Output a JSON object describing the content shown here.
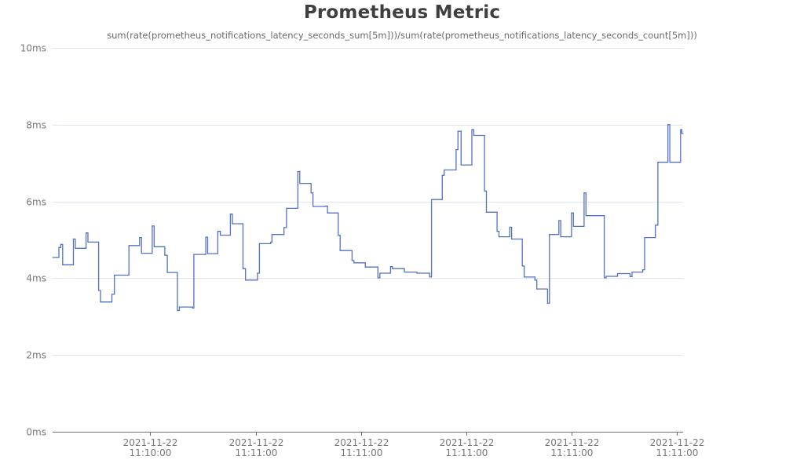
{
  "header": {
    "title": "Prometheus Metric",
    "subtitle": "sum(rate(prometheus_notifications_latency_seconds_sum[5m]))/sum(rate(prometheus_notifications_latency_seconds_count[5m]))"
  },
  "colors": {
    "series": "#5470c6",
    "grid": "#e0e6f1",
    "axis": "#6e7079",
    "tick_text": "#777777"
  },
  "chart_data": {
    "type": "line",
    "title": "Prometheus Metric",
    "subtitle": "sum(rate(prometheus_notifications_latency_seconds_sum[5m]))/sum(rate(prometheus_notifications_latency_seconds_count[5m]))",
    "xlabel": "",
    "ylabel": "",
    "ylim": [
      0,
      10
    ],
    "y_unit": "ms",
    "y_ticks": [
      {
        "value": 0,
        "label": "0ms"
      },
      {
        "value": 2,
        "label": "2ms"
      },
      {
        "value": 4,
        "label": "4ms"
      },
      {
        "value": 6,
        "label": "6ms"
      },
      {
        "value": 8,
        "label": "8ms"
      },
      {
        "value": 10,
        "label": "10ms"
      }
    ],
    "x_range": [
      0,
      100
    ],
    "x_ticks": [
      {
        "pos": 15.5,
        "date": "2021-11-22",
        "time": "11:10:00"
      },
      {
        "pos": 32.2,
        "date": "2021-11-22",
        "time": "11:11:00"
      },
      {
        "pos": 48.9,
        "date": "2021-11-22",
        "time": "11:11:00"
      },
      {
        "pos": 65.6,
        "date": "2021-11-22",
        "time": "11:11:00"
      },
      {
        "pos": 82.3,
        "date": "2021-11-22",
        "time": "11:11:00"
      },
      {
        "pos": 99.0,
        "date": "2021-11-22",
        "time": "11:11:00"
      }
    ],
    "grid": true,
    "legend": "none",
    "step": "end",
    "series": [
      {
        "points": [
          [
            0.0,
            4.54
          ],
          [
            0.5,
            4.54
          ],
          [
            0.8,
            4.54
          ],
          [
            1.0,
            4.8
          ],
          [
            1.3,
            4.88
          ],
          [
            1.6,
            4.35
          ],
          [
            2.0,
            4.35
          ],
          [
            3.1,
            4.35
          ],
          [
            3.3,
            5.02
          ],
          [
            3.6,
            4.78
          ],
          [
            5.2,
            4.78
          ],
          [
            5.3,
            5.18
          ],
          [
            5.6,
            4.94
          ],
          [
            7.1,
            4.94
          ],
          [
            7.3,
            3.68
          ],
          [
            7.6,
            3.38
          ],
          [
            9.2,
            3.38
          ],
          [
            9.4,
            3.58
          ],
          [
            9.8,
            4.08
          ],
          [
            11.9,
            4.08
          ],
          [
            12.1,
            4.85
          ],
          [
            13.6,
            4.85
          ],
          [
            13.8,
            5.06
          ],
          [
            14.1,
            4.65
          ],
          [
            15.6,
            4.65
          ],
          [
            15.8,
            5.36
          ],
          [
            16.1,
            4.82
          ],
          [
            17.6,
            4.82
          ],
          [
            17.8,
            4.6
          ],
          [
            18.2,
            4.15
          ],
          [
            19.6,
            4.15
          ],
          [
            19.8,
            3.16
          ],
          [
            20.1,
            3.25
          ],
          [
            21.9,
            3.25
          ],
          [
            22.2,
            3.22
          ],
          [
            22.4,
            4.62
          ],
          [
            24.1,
            4.62
          ],
          [
            24.3,
            5.07
          ],
          [
            24.6,
            4.64
          ],
          [
            26.0,
            4.64
          ],
          [
            26.2,
            5.22
          ],
          [
            26.6,
            5.12
          ],
          [
            28.0,
            5.12
          ],
          [
            28.2,
            5.67
          ],
          [
            28.5,
            5.42
          ],
          [
            30.0,
            5.42
          ],
          [
            30.2,
            4.25
          ],
          [
            30.6,
            3.95
          ],
          [
            32.3,
            3.95
          ],
          [
            32.5,
            4.13
          ],
          [
            32.8,
            4.9
          ],
          [
            34.4,
            4.9
          ],
          [
            34.6,
            4.94
          ],
          [
            34.8,
            5.14
          ],
          [
            36.5,
            5.14
          ],
          [
            36.7,
            5.32
          ],
          [
            37.1,
            5.82
          ],
          [
            38.7,
            5.82
          ],
          [
            38.9,
            6.78
          ],
          [
            39.2,
            6.47
          ],
          [
            40.8,
            6.47
          ],
          [
            41.0,
            6.22
          ],
          [
            41.3,
            5.87
          ],
          [
            43.0,
            5.87
          ],
          [
            43.3,
            5.88
          ],
          [
            43.6,
            5.7
          ],
          [
            45.1,
            5.7
          ],
          [
            45.3,
            5.12
          ],
          [
            45.6,
            4.72
          ],
          [
            47.3,
            4.72
          ],
          [
            47.5,
            4.46
          ],
          [
            47.8,
            4.4
          ],
          [
            49.4,
            4.4
          ],
          [
            49.6,
            4.29
          ],
          [
            51.4,
            4.29
          ],
          [
            51.6,
            4.01
          ],
          [
            51.9,
            4.13
          ],
          [
            53.4,
            4.13
          ],
          [
            53.6,
            4.3
          ],
          [
            53.9,
            4.25
          ],
          [
            55.6,
            4.25
          ],
          [
            55.8,
            4.16
          ],
          [
            57.6,
            4.16
          ],
          [
            57.8,
            4.13
          ],
          [
            59.6,
            4.13
          ],
          [
            59.8,
            4.03
          ],
          [
            60.1,
            6.05
          ],
          [
            61.6,
            6.05
          ],
          [
            61.8,
            6.68
          ],
          [
            62.1,
            6.82
          ],
          [
            63.8,
            6.82
          ],
          [
            64.0,
            7.35
          ],
          [
            64.3,
            7.83
          ],
          [
            64.6,
            7.83
          ],
          [
            64.8,
            6.95
          ],
          [
            66.3,
            6.95
          ],
          [
            66.5,
            7.87
          ],
          [
            66.8,
            7.72
          ],
          [
            68.3,
            7.72
          ],
          [
            68.5,
            6.27
          ],
          [
            68.8,
            5.72
          ],
          [
            70.3,
            5.72
          ],
          [
            70.5,
            5.22
          ],
          [
            70.8,
            5.08
          ],
          [
            72.3,
            5.08
          ],
          [
            72.5,
            5.33
          ],
          [
            72.8,
            5.02
          ],
          [
            74.3,
            5.02
          ],
          [
            74.5,
            4.32
          ],
          [
            74.8,
            4.03
          ],
          [
            76.3,
            4.03
          ],
          [
            76.5,
            3.95
          ],
          [
            76.8,
            3.72
          ],
          [
            78.3,
            3.72
          ],
          [
            78.5,
            3.35
          ],
          [
            78.8,
            5.14
          ],
          [
            80.1,
            5.14
          ],
          [
            80.3,
            5.5
          ],
          [
            80.6,
            5.08
          ],
          [
            82.1,
            5.08
          ],
          [
            82.3,
            5.7
          ],
          [
            82.6,
            5.35
          ],
          [
            84.1,
            5.35
          ],
          [
            84.3,
            6.22
          ],
          [
            84.6,
            5.63
          ],
          [
            86.1,
            5.63
          ],
          [
            87.5,
            4.01
          ],
          [
            87.8,
            4.05
          ],
          [
            89.4,
            4.05
          ],
          [
            89.6,
            4.12
          ],
          [
            91.4,
            4.12
          ],
          [
            91.6,
            4.04
          ],
          [
            91.9,
            4.16
          ],
          [
            93.4,
            4.16
          ],
          [
            93.6,
            4.22
          ],
          [
            93.9,
            5.06
          ],
          [
            95.4,
            5.06
          ],
          [
            95.6,
            5.38
          ],
          [
            96.0,
            7.02
          ],
          [
            97.4,
            7.02
          ],
          [
            97.6,
            8.0
          ],
          [
            97.9,
            7.02
          ],
          [
            99.4,
            7.02
          ],
          [
            99.6,
            7.87
          ],
          [
            99.8,
            7.77
          ],
          [
            100.0,
            7.77
          ]
        ]
      }
    ]
  }
}
